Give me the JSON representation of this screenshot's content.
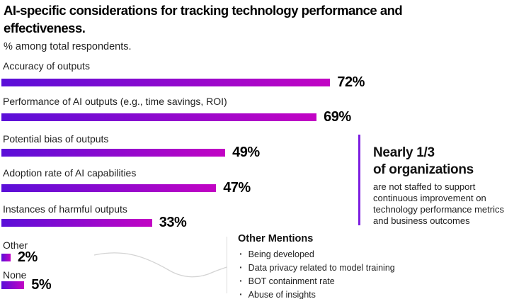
{
  "title": "AI-specific considerations for tracking technology performance and effectiveness.",
  "subtitle": "% among total respondents.",
  "chart_data": {
    "type": "bar",
    "orientation": "horizontal",
    "unit": "%",
    "xlim": [
      0,
      100
    ],
    "grid": false,
    "legend": false,
    "bar_gradient": [
      "#5a0fd8",
      "#c204c4"
    ],
    "categories": [
      "Accuracy of outputs",
      "Performance of AI outputs (e.g., time savings, ROI)",
      "Potential bias of outputs",
      "Adoption rate of AI capabilities",
      "Instances of harmful outputs",
      "Other",
      "None"
    ],
    "values": [
      72,
      69,
      49,
      47,
      33,
      2,
      5
    ],
    "rows": [
      {
        "category": "Accuracy of outputs",
        "value": 72,
        "value_label": "72%"
      },
      {
        "category": "Performance of AI outputs (e.g., time savings, ROI)",
        "value": 69,
        "value_label": "69%"
      },
      {
        "category": "Potential bias of outputs",
        "value": 49,
        "value_label": "49%"
      },
      {
        "category": "Adoption rate of AI capabilities",
        "value": 47,
        "value_label": "47%"
      },
      {
        "category": "Instances of harmful outputs",
        "value": 33,
        "value_label": "33%"
      },
      {
        "category": "Other",
        "value": 2,
        "value_label": "2%"
      },
      {
        "category": "None",
        "value": 5,
        "value_label": "5%"
      }
    ]
  },
  "callout": {
    "heading_line1": "Nearly 1/3",
    "heading_line2": "of organizations",
    "body": "are not staffed to support continuous improvement on technology performance metrics and business outcomes",
    "accent_color": "#7d1fe0"
  },
  "other_mentions": {
    "heading": "Other Mentions",
    "items": [
      "Being developed",
      "Data privacy related to model training",
      "BOT containment rate",
      "Abuse of insights"
    ]
  }
}
